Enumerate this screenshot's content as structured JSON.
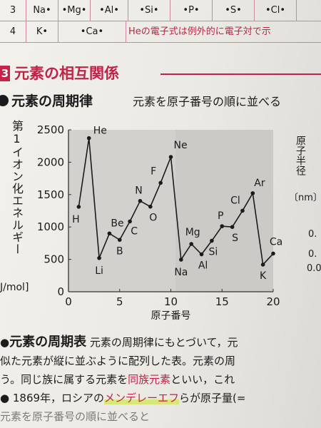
{
  "table": {
    "rows": [
      {
        "period": "3",
        "cells": [
          "Na•",
          "•Mg•",
          "•Al•",
          "•Si•",
          "•P•",
          "•S•",
          "•Cl•"
        ]
      },
      {
        "period": "4",
        "cells": [
          "K•",
          "•Ca•"
        ],
        "note": "Heの電子式は例外的に電子対で示"
      }
    ]
  },
  "section": {
    "number": "3",
    "title": "元素の相互関係"
  },
  "subsection": {
    "title": "元素の周期律",
    "desc": "元素を原子番号の順に並べる"
  },
  "chart_labels": {
    "ylabel": "第1イオン化エネルギー",
    "yunit": "J/mol]",
    "xlabel": "原子番号",
    "right_label": "原子半径",
    "right_unit": "〔nm〕",
    "right_ticks": [
      "0.",
      "0.",
      "0.0"
    ]
  },
  "chart_data": {
    "type": "line",
    "xlabel": "原子番号",
    "ylabel": "第1イオン化エネルギー",
    "xlim": [
      0,
      20
    ],
    "ylim": [
      0,
      2500
    ],
    "xticks": [
      "0",
      "5",
      "10",
      "15",
      "20"
    ],
    "yticks": [
      "0",
      "500",
      "1000",
      "1500",
      "2000",
      "2500"
    ],
    "x": [
      1,
      2,
      3,
      4,
      5,
      6,
      7,
      8,
      9,
      10,
      11,
      12,
      13,
      14,
      15,
      16,
      17,
      18,
      19,
      20
    ],
    "values": [
      1312,
      2372,
      520,
      900,
      801,
      1086,
      1402,
      1314,
      1681,
      2081,
      496,
      738,
      578,
      787,
      1012,
      1000,
      1251,
      1521,
      419,
      590
    ],
    "point_labels": [
      "H",
      "He",
      "Li",
      "Be",
      "B",
      "C",
      "N",
      "O",
      "F",
      "Ne",
      "Na",
      "Mg",
      "Al",
      "Si",
      "P",
      "S",
      "Cl",
      "Ar",
      "K",
      "Ca"
    ]
  },
  "paragraphs": {
    "p1_title": "元素の周期表",
    "p1_text": "元素の周期律にもとづいて，元",
    "p2": "似た元素が縦に並ぶように配列した表。元素の周",
    "p3_pre": "う。同じ族に属する元素を",
    "p3_red": "同族元素",
    "p3_post": "といい，これ",
    "p4_pre": "● 1869年，ロシアの",
    "p4_hl": "メンデレーエフ",
    "p4_post": "らが原子量(=",
    "p5": "元素を原子番号の順に並べると"
  }
}
